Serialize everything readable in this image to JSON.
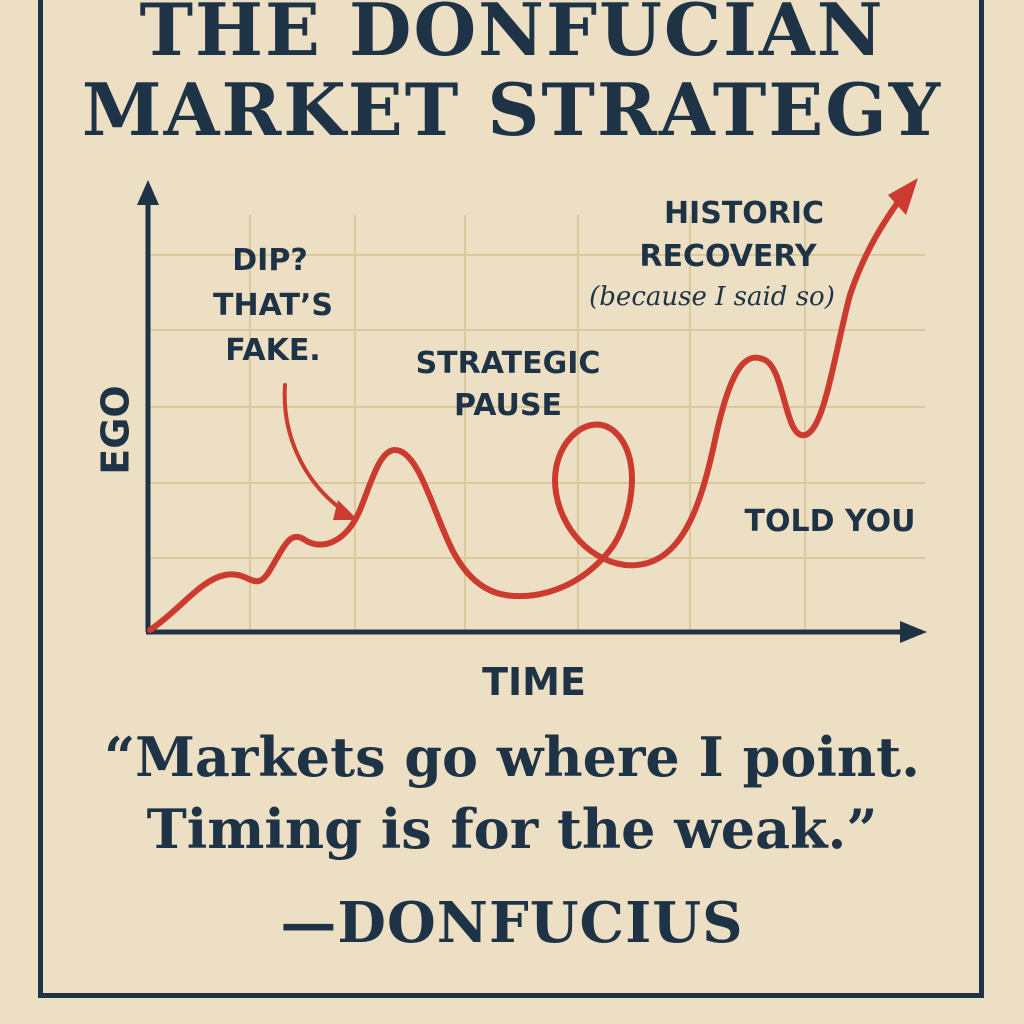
{
  "poster": {
    "title_line1": "THE DONFUCIAN",
    "title_line2": "MARKET STRATEGY",
    "quote_line1": "“Markets go where I point.",
    "quote_line2": "Timing is for the weak.”",
    "attribution": "—DONFUCIUS"
  },
  "colors": {
    "background": "#ecdfc3",
    "ink": "#1f3347",
    "line": "#cc3b30",
    "grid": "#d9c99c"
  },
  "chart_data": {
    "type": "line",
    "xlabel": "TIME",
    "ylabel": "EGO",
    "grid": true,
    "annotations": [
      {
        "lines": [
          "DIP?",
          "THAT’S",
          "FAKE."
        ]
      },
      {
        "lines": [
          "STRATEGIC",
          "PAUSE"
        ]
      },
      {
        "lines": [
          "HISTORIC",
          "RECOVERY"
        ],
        "note": "(because I said so)"
      },
      {
        "lines": [
          "TOLD YOU"
        ]
      }
    ]
  }
}
